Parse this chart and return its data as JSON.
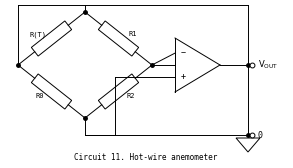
{
  "title": "Circuit 11. Hot-wire anemometer",
  "bg_color": "#ffffff",
  "line_color": "#000000",
  "fig_width": 2.93,
  "fig_height": 1.68,
  "dpi": 100,
  "lw": 0.7,
  "resistor_labels": [
    "R(T)",
    "R1",
    "R0",
    "R2"
  ],
  "minus_label": "-",
  "plus_label": "+",
  "vout_label": "V",
  "vout_sub": "OUT",
  "gnd_label": "0"
}
